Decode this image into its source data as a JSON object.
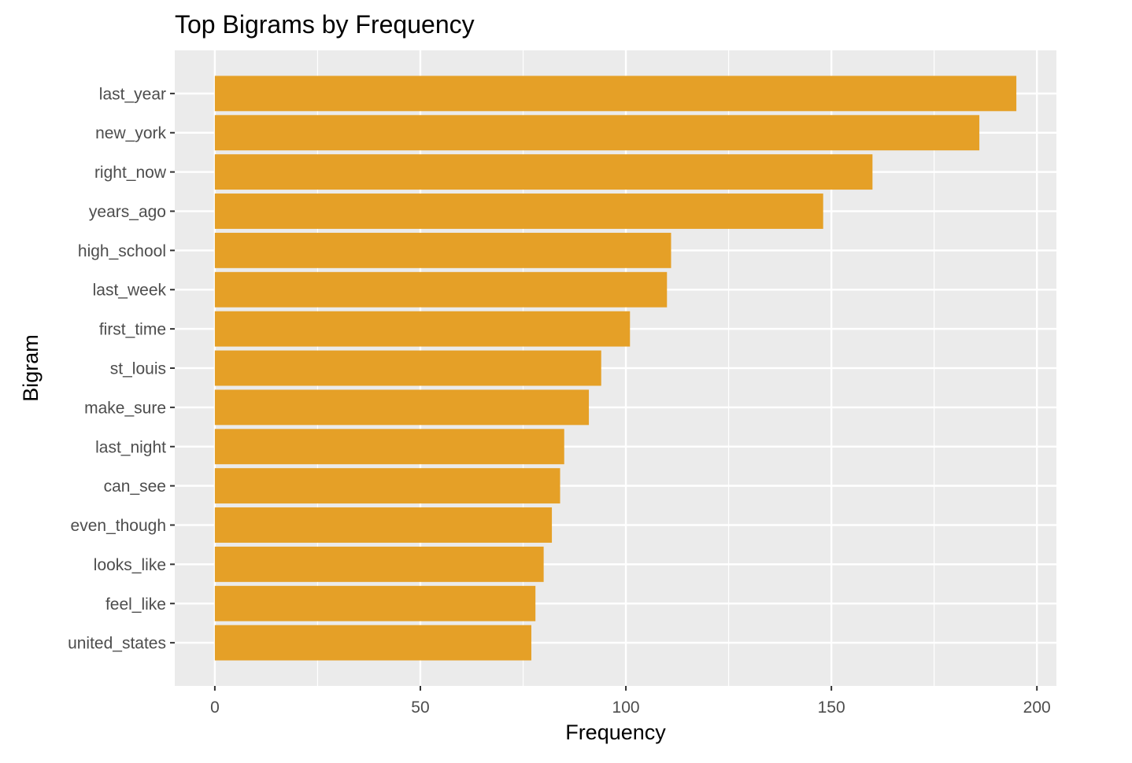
{
  "chart_data": {
    "type": "bar",
    "orientation": "horizontal",
    "title": "Top Bigrams by Frequency",
    "xlabel": "Frequency",
    "ylabel": "Bigram",
    "categories": [
      "last_year",
      "new_york",
      "right_now",
      "years_ago",
      "high_school",
      "last_week",
      "first_time",
      "st_louis",
      "make_sure",
      "last_night",
      "can_see",
      "even_though",
      "looks_like",
      "feel_like",
      "united_states"
    ],
    "values": [
      195,
      186,
      160,
      148,
      111,
      110,
      101,
      94,
      91,
      85,
      84,
      82,
      80,
      78,
      77
    ],
    "xlim": [
      -9.75,
      204.75
    ],
    "x_ticks": [
      0,
      50,
      100,
      150,
      200
    ],
    "grid": true,
    "legend": "none",
    "colors": {
      "bar": "#E5A027",
      "panel": "#EBEBEB",
      "grid": "#FFFFFF"
    }
  }
}
